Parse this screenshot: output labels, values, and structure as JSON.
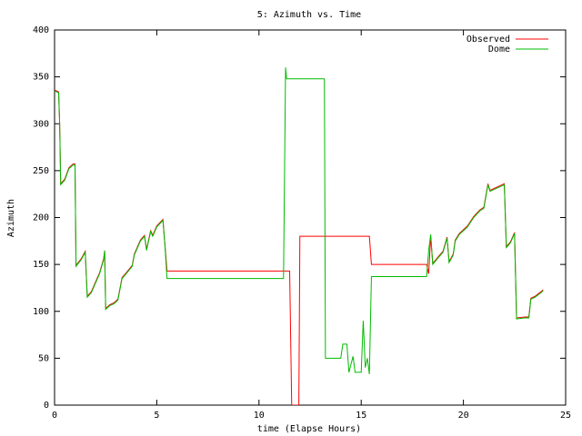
{
  "chart_data": {
    "type": "line",
    "title": "5: Azimuth vs. Time",
    "xlabel": "time (Elapse Hours)",
    "ylabel": "Azimuth",
    "xlim": [
      0,
      25
    ],
    "xticks": [
      0,
      5,
      10,
      15,
      20,
      25
    ],
    "ylim": [
      0,
      400
    ],
    "yticks": [
      0,
      50,
      100,
      150,
      200,
      250,
      300,
      350,
      400
    ],
    "grid": false,
    "legend": "upper right",
    "series": [
      {
        "name": "Observed",
        "color": "#ff0000",
        "x": [
          0,
          0.2,
          0.25,
          0.3,
          0.5,
          0.7,
          0.9,
          1.0,
          1.05,
          1.3,
          1.5,
          1.6,
          1.8,
          2.0,
          2.2,
          2.4,
          2.45,
          2.5,
          2.7,
          2.9,
          3.1,
          3.3,
          3.5,
          3.8,
          3.9,
          4.2,
          4.4,
          4.5,
          4.7,
          4.8,
          5.0,
          5.3,
          5.4,
          5.5,
          11.5,
          11.6,
          11.95,
          12.0,
          15.4,
          15.5,
          18.2,
          18.3,
          18.4,
          18.5,
          18.8,
          19.0,
          19.2,
          19.3,
          19.5,
          19.6,
          19.8,
          20.0,
          20.2,
          20.5,
          20.8,
          21.0,
          21.2,
          21.3,
          21.5,
          21.8,
          22.0,
          22.1,
          22.3,
          22.5,
          22.6,
          23.0,
          23.2,
          23.3,
          23.5,
          23.8,
          23.9
        ],
        "values": [
          336,
          334,
          300,
          236,
          241,
          253,
          257,
          257,
          149,
          156,
          164,
          116,
          121,
          131,
          141,
          156,
          164,
          103,
          107,
          109,
          113,
          136,
          141,
          149,
          161,
          176,
          181,
          166,
          186,
          181,
          191,
          198,
          171,
          143,
          143,
          0,
          0,
          180,
          180,
          150,
          150,
          140,
          180,
          151,
          159,
          164,
          179,
          153,
          161,
          176,
          183,
          187,
          191,
          201,
          208,
          211,
          236,
          229,
          231,
          234,
          236,
          169,
          174,
          184,
          93,
          94,
          94,
          114,
          116,
          121,
          123
        ]
      },
      {
        "name": "Dome",
        "color": "#00bb00",
        "x": [
          0,
          0.2,
          0.25,
          0.3,
          0.5,
          0.7,
          0.9,
          1.0,
          1.05,
          1.3,
          1.5,
          1.6,
          1.8,
          2.0,
          2.2,
          2.4,
          2.45,
          2.5,
          2.7,
          2.9,
          3.1,
          3.3,
          3.5,
          3.8,
          3.9,
          4.2,
          4.4,
          4.5,
          4.7,
          4.8,
          5.0,
          5.3,
          5.4,
          5.5,
          11.2,
          11.3,
          11.35,
          13.2,
          13.25,
          14.0,
          14.1,
          14.3,
          14.4,
          14.6,
          14.7,
          15.0,
          15.1,
          15.2,
          15.3,
          15.4,
          15.5,
          18.2,
          18.3,
          18.4,
          18.5,
          18.8,
          19.0,
          19.2,
          19.3,
          19.5,
          19.6,
          19.8,
          20.0,
          20.2,
          20.5,
          20.8,
          21.0,
          21.2,
          21.3,
          21.5,
          21.8,
          22.0,
          22.1,
          22.3,
          22.5,
          22.6,
          23.0,
          23.2,
          23.3,
          23.5,
          23.8,
          23.9
        ],
        "values": [
          335,
          333,
          300,
          235,
          240,
          252,
          256,
          256,
          148,
          155,
          163,
          115,
          120,
          130,
          140,
          155,
          165,
          102,
          106,
          108,
          112,
          135,
          140,
          148,
          160,
          175,
          180,
          165,
          185,
          180,
          190,
          197,
          170,
          135,
          135,
          360,
          348,
          348,
          50,
          50,
          65,
          65,
          35,
          52,
          35,
          35,
          90,
          40,
          50,
          33,
          137,
          137,
          165,
          182,
          150,
          158,
          163,
          178,
          152,
          160,
          175,
          182,
          186,
          190,
          200,
          207,
          210,
          235,
          228,
          230,
          233,
          235,
          168,
          173,
          183,
          92,
          93,
          93,
          113,
          115,
          120,
          122
        ]
      }
    ]
  }
}
